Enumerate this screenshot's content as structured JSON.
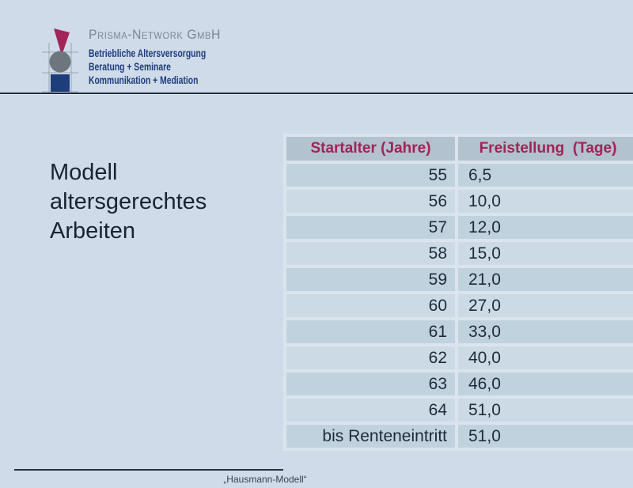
{
  "logo": {
    "company": "Prisma-Network GmbH",
    "taglines": "Betriebliche Altersversorgung\nBeratung + Seminare\nKommunikation + Mediation",
    "colors": {
      "triangle": "#a32456",
      "circle": "#6d757d",
      "square": "#1d3e7a",
      "crosshair": "#9aa6b1",
      "company_text": "#7b8793",
      "tagline_text": "#1e3c7c"
    }
  },
  "title": {
    "text": "Modell\naltersgerechtes\nArbeiten"
  },
  "table": {
    "headers": [
      "Startalter (Jahre)",
      "Freistellung  (Tage)"
    ],
    "rows": [
      [
        "55",
        "6,5"
      ],
      [
        "56",
        "10,0"
      ],
      [
        "57",
        "12,0"
      ],
      [
        "58",
        "15,0"
      ],
      [
        "59",
        "21,0"
      ],
      [
        "60",
        "27,0"
      ],
      [
        "61",
        "33,0"
      ],
      [
        "62",
        "40,0"
      ],
      [
        "63",
        "46,0"
      ],
      [
        "64",
        "51,0"
      ],
      [
        "bis Renteneintritt",
        "51,0"
      ]
    ],
    "colors": {
      "header_bg": "#b3c2cf",
      "header_text": "#a22355",
      "row_odd": "#c1d2df",
      "row_even": "#ccdae6",
      "grid": "#dbe4ed",
      "cell_text": "#1e2b39"
    }
  },
  "footer": {
    "caption": "„Hausmann-Modell“"
  }
}
